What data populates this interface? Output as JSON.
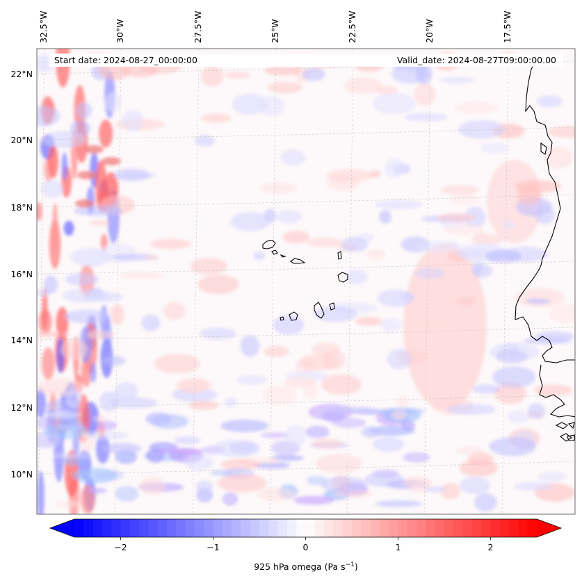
{
  "map": {
    "header": {
      "start_date": "Start date: 2024-08-27_00:00:00",
      "valid_date": "Valid_date: 2024-08-27T09:00:00.00"
    },
    "top_lon_labels": [
      "32.5°W",
      "30°W",
      "27.5°W",
      "25°W",
      "22.5°W",
      "20°W",
      "17.5°W"
    ],
    "left_lat_labels": [
      "22°N",
      "20°N",
      "18°N",
      "16°N",
      "14°N",
      "12°N",
      "10°N"
    ],
    "field": "925 hPa omega",
    "colormap": "bwr",
    "gridlines": true,
    "coastlines": true,
    "colors": {
      "negative": "#0000ff",
      "zero": "#ffffff",
      "positive": "#ff0000",
      "gridline": "#bbbbbb",
      "coast": "#000000"
    }
  },
  "colorbar": {
    "ticks": [
      "−2",
      "−1",
      "0",
      "1",
      "2"
    ],
    "tick_values": [
      -2,
      -1,
      0,
      1,
      2
    ],
    "range": [
      -2.5,
      2.5
    ],
    "extend": "both",
    "label": "925 hPa omega (Pa s",
    "label_sup": "−1",
    "label_end": ")"
  }
}
